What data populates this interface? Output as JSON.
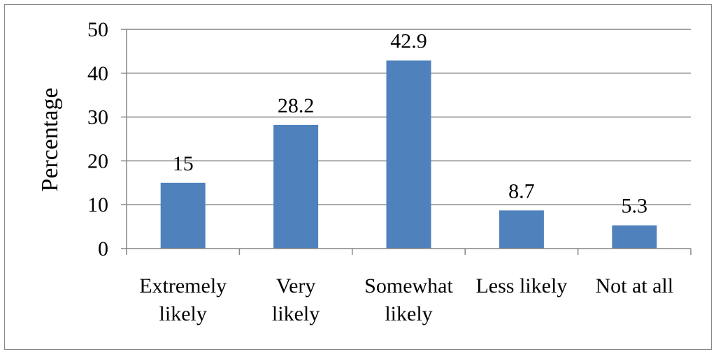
{
  "chart_data": {
    "type": "bar",
    "ylabel": "Percentage",
    "categories": [
      [
        "Extremely",
        "likely"
      ],
      [
        "Very",
        "likely"
      ],
      [
        "Somewhat",
        "likely"
      ],
      [
        "Less likely"
      ],
      [
        "Not at all"
      ]
    ],
    "values": [
      15,
      28.2,
      42.9,
      8.7,
      5.3
    ],
    "value_labels": [
      "15",
      "28.2",
      "42.9",
      "8.7",
      "5.3"
    ],
    "ylim": [
      0,
      50
    ],
    "yticks": [
      0,
      10,
      20,
      30,
      40,
      50
    ],
    "grid": true,
    "bar_color": "#4f81bd",
    "grid_color": "#868686"
  }
}
